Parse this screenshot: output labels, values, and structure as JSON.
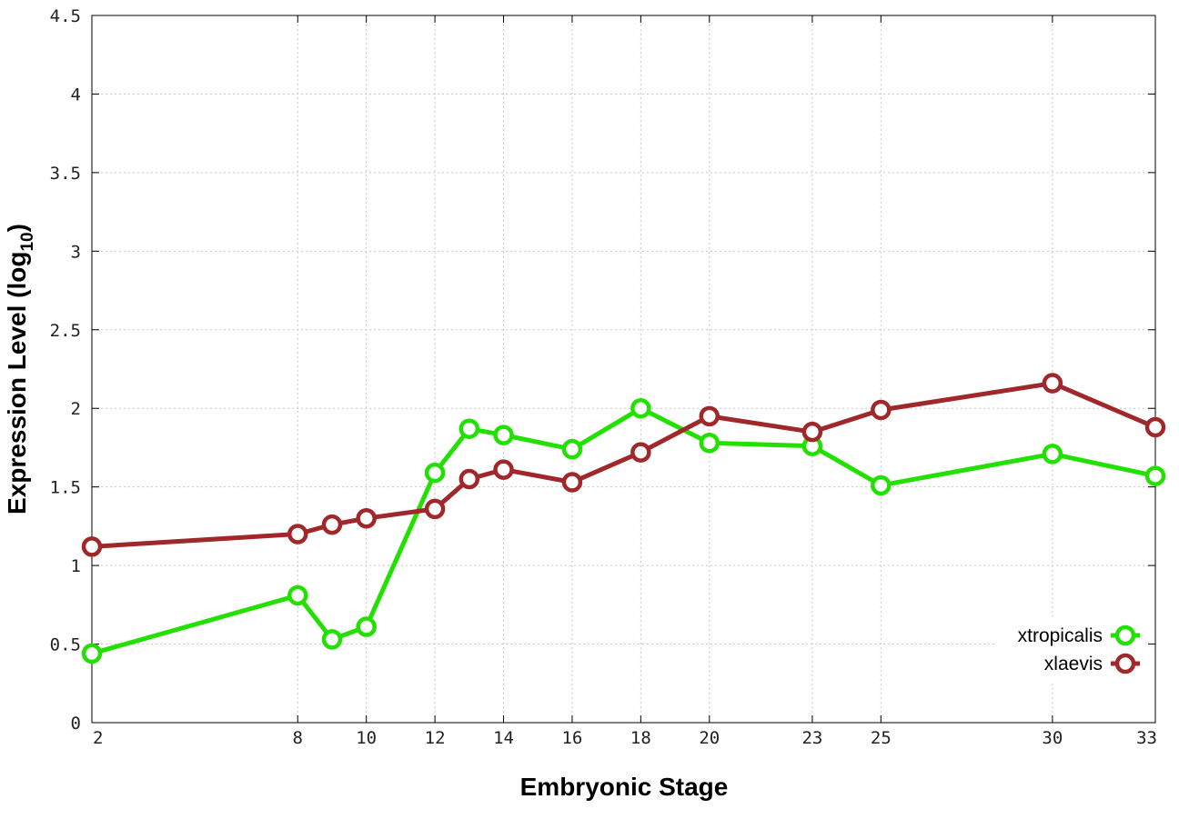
{
  "chart_data": {
    "type": "line",
    "title": "",
    "xlabel": "Embryonic Stage",
    "ylabel_main": "Expression Level (log",
    "ylabel_sub": "10",
    "ylabel_close": ")",
    "x": [
      2,
      8,
      9,
      10,
      12,
      13,
      14,
      16,
      18,
      20,
      23,
      25,
      30,
      33
    ],
    "x_ticks": [
      "2",
      "8",
      "10",
      "12",
      "14",
      "16",
      "18",
      "20",
      "23",
      "25",
      "30",
      "33"
    ],
    "x_tick_values": [
      2,
      8,
      10,
      12,
      14,
      16,
      18,
      20,
      23,
      25,
      30,
      33
    ],
    "y_ticks": [
      "0",
      "0.5",
      "1",
      "1.5",
      "2",
      "2.5",
      "3",
      "3.5",
      "4",
      "4.5"
    ],
    "y_tick_values": [
      0,
      0.5,
      1,
      1.5,
      2,
      2.5,
      3,
      3.5,
      4,
      4.5
    ],
    "xlim": [
      2,
      33
    ],
    "ylim": [
      0,
      4.5
    ],
    "grid": true,
    "legend_position": "bottom-right",
    "series": [
      {
        "name": "xtropicalis",
        "color": "#22e000",
        "values": [
          0.44,
          0.81,
          0.53,
          0.61,
          1.59,
          1.87,
          1.83,
          1.74,
          2.0,
          1.78,
          1.76,
          1.51,
          1.71,
          1.57
        ]
      },
      {
        "name": "xlaevis",
        "color": "#a0282a",
        "values": [
          1.12,
          1.2,
          1.26,
          1.3,
          1.36,
          1.55,
          1.61,
          1.53,
          1.72,
          1.95,
          1.85,
          1.99,
          2.16,
          1.88
        ]
      }
    ]
  }
}
